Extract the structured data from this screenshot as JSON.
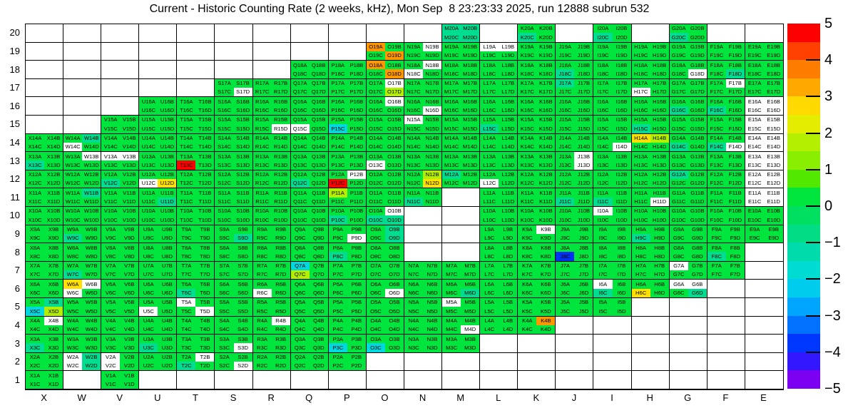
{
  "chart_data": {
    "type": "heatmap",
    "title": "Current - Historic Counting Rate (2 weeks, kHz), Mon Sep  8 23:23:33 2025, run 12888 subrun 532",
    "x_categories": [
      "X",
      "W",
      "V",
      "U",
      "T",
      "S",
      "R",
      "Q",
      "P",
      "O",
      "N",
      "M",
      "L",
      "K",
      "J",
      "I",
      "H",
      "G",
      "F",
      "E"
    ],
    "y_categories": [
      "20",
      "19",
      "18",
      "17",
      "16",
      "15",
      "14",
      "13",
      "12",
      "11",
      "10",
      "9",
      "8",
      "7",
      "6",
      "5",
      "4",
      "3",
      "2",
      "1"
    ],
    "channel_suffixes": [
      "A",
      "B",
      "C",
      "D"
    ],
    "colorbar": {
      "range": [
        -5,
        5
      ],
      "tick_labels": [
        "5",
        "4",
        "3",
        "2",
        "1",
        "0",
        "-1",
        "-2",
        "-3",
        "-4",
        "-5"
      ],
      "segments": [
        "#ff0000",
        "#ff4000",
        "#ff7d00",
        "#ffa800",
        "#ffd900",
        "#e4ec00",
        "#b4ee00",
        "#8aee00",
        "#52e800",
        "#00e43e",
        "#00e060",
        "#00dd85",
        "#00dbab",
        "#00dcd2",
        "#00cdee",
        "#00a5ff",
        "#0072ff",
        "#0037ff",
        "#3318ff",
        "#7c00f2"
      ]
    },
    "palette": {
      "g": "#00e43e",
      "t": "#00dd90",
      "c": "#00d8e0",
      "b": "#0032f5",
      "h": "#b4ee00",
      "y": "#ffe000",
      "o": "#ff9800",
      "r": "#ff0000",
      "w": "#ffffff"
    },
    "palette_values": {
      "g": 0,
      "t": -1,
      "c": -2,
      "b": -3.5,
      "h": 1.5,
      "y": 2.5,
      "o": 4,
      "r": 5,
      "w": "no-data"
    },
    "grid": {
      "rows": [
        {
          "row": "20",
          "modules": {
            "M": "tttt",
            "K": "ggtg",
            "I": "ggtg",
            "G": "ggtg"
          }
        },
        {
          "row": "19",
          "modules": {
            "O": "oggo",
            "N": "gwgg",
            "M": "gggg",
            "L": "wwgg",
            "K": "gggg",
            "J": "gggg",
            "I": "gggg",
            "H": "gggg",
            "G": "gggg",
            "F": "gggg",
            "E": "gggg"
          }
        },
        {
          "row": "18",
          "modules": {
            "Q": "gggg",
            "P": "gggg",
            "O": "oggo",
            "N": "gwwg",
            "M": "gggg",
            "L": "gggg",
            "K": "gggg",
            "J": "ggtg",
            "I": "gggg",
            "H": "gggg",
            "G": "gggw",
            "F": "gggt",
            "E": "gggg"
          }
        },
        {
          "row": "17",
          "modules": {
            "S": "gggw",
            "R": "gggg",
            "Q": "gggg",
            "P": "gggg",
            "O": "gwgh",
            "N": "gggg",
            "M": "gggg",
            "L": "gggg",
            "K": "gggg",
            "J": "tggg",
            "I": "gggg",
            "H": "ggwg",
            "G": "gggg",
            "F": "gwgg",
            "E": "gggg"
          }
        },
        {
          "row": "16",
          "modules": {
            "U": "gggg",
            "T": "gggg",
            "S": "gggg",
            "R": "gggg",
            "Q": "gggg",
            "P": "gggg",
            "O": "gwgg",
            "N": "gggw",
            "M": "gggg",
            "L": "gggg",
            "K": "gggg",
            "J": "gggg",
            "I": "gggg",
            "H": "gggg",
            "G": "ggtg",
            "F": "ggtg",
            "E": "wwww"
          }
        },
        {
          "row": "15",
          "modules": {
            "V": "gggg",
            "U": "gggg",
            "T": "gggg",
            "S": "gggg",
            "R": "gggw",
            "Q": "ggwg",
            "P": "ggcg",
            "O": "gggg",
            "N": "wggg",
            "M": "gggg",
            "L": "ggtg",
            "K": "gggg",
            "J": "gggg",
            "I": "gggg",
            "H": "ggtg",
            "G": "gggg",
            "F": "gggg",
            "E": "wwww"
          }
        },
        {
          "row": "14",
          "modules": {
            "X": "gggg",
            "W": "gtwg",
            "V": "gggg",
            "U": "gggg",
            "T": "gggg",
            "S": "gggg",
            "R": "gggg",
            "Q": "gggg",
            "P": "gggg",
            "O": "gggg",
            "N": "gggg",
            "M": "gggg",
            "L": "gggg",
            "K": "gggg",
            "J": "gggg",
            "I": "gggw",
            "H": "yhgg",
            "G": "ggtg",
            "F": "ggtw",
            "E": "wwww"
          }
        },
        {
          "row": "13",
          "modules": {
            "X": "ggtg",
            "W": "gwgg",
            "V": "wwgg",
            "U": "gggg",
            "T": "ggrg",
            "S": "gggg",
            "R": "gggg",
            "Q": "gggg",
            "P": "gggg",
            "O": "ggwg",
            "N": "gggg",
            "M": "gggg",
            "L": "gggg",
            "K": "gggg",
            "J": "gwgw",
            "I": "gggg",
            "H": "gggg",
            "G": "gggg",
            "F": "gggg",
            "E": "wwww"
          }
        },
        {
          "row": "12",
          "modules": {
            "X": "gggg",
            "W": "gggg",
            "V": "ggtg",
            "U": "ggwy",
            "T": "gggg",
            "S": "gggg",
            "R": "gggg",
            "Q": "ggtg",
            "P": "gwrg",
            "O": "gggg",
            "N": "ghgy",
            "M": "tggg",
            "L": "ggwg",
            "K": "gggg",
            "J": "gggg",
            "I": "gggg",
            "H": "gggg",
            "G": "tggg",
            "F": "gggg",
            "E": "wwww"
          }
        },
        {
          "row": "11",
          "modules": {
            "X": "gggg",
            "W": "gtgg",
            "V": "gggg",
            "U": "gggt",
            "T": "gggg",
            "S": "gggg",
            "R": "gggg",
            "Q": "gggg",
            "P": "hggg",
            "O": "gggg",
            "N": "ggtg",
            "L": "gggg",
            "K": "gggg",
            "J": "ggtg",
            "I": "ggtg",
            "H": "gggw",
            "G": "gggg",
            "F": "gggg",
            "E": "wwww"
          }
        },
        {
          "row": "10",
          "modules": {
            "X": "gggg",
            "W": "gggg",
            "V": "gggg",
            "U": "gggg",
            "T": "gggg",
            "S": "gggg",
            "R": "gggg",
            "Q": "gggg",
            "P": "ggtg",
            "O": "gwtt",
            "L": "gggg",
            "K": "gggg",
            "J": "gggg",
            "I": "wggg",
            "H": "gggg",
            "G": "gggg",
            "F": "gggg",
            "E": "gggg"
          }
        },
        {
          "row": "9",
          "modules": {
            "X": "gggg",
            "W": "ggtg",
            "V": "gggg",
            "U": "gggg",
            "T": "gggg",
            "S": "gggt",
            "R": "gggg",
            "Q": "gggg",
            "P": "gggw",
            "O": "gtgt",
            "L": "gggg",
            "K": "gwgg",
            "J": "gggg",
            "I": "gggg",
            "H": "ggtg",
            "G": "gggg",
            "F": "gggg",
            "E": "gggg"
          }
        },
        {
          "row": "8",
          "modules": {
            "X": "gggg",
            "W": "gggg",
            "V": "gggg",
            "U": "gggg",
            "T": "gggg",
            "S": "gggg",
            "R": "gggg",
            "Q": "gggg",
            "P": "ggtg",
            "O": "gggg",
            "L": "gggg",
            "K": "gggg",
            "J": "ggbg",
            "I": "gggg",
            "H": "gggg",
            "G": "gggg",
            "F": "ggtg"
          }
        },
        {
          "row": "7",
          "modules": {
            "X": "gggg",
            "W": "ggtg",
            "V": "gggg",
            "U": "gggg",
            "T": "gggg",
            "S": "gggg",
            "R": "gggg",
            "Q": "cghg",
            "P": "gggg",
            "O": "gggg",
            "N": "gggg",
            "M": "gggg",
            "L": "gggg",
            "K": "gggg",
            "J": "gggg",
            "I": "gggg",
            "H": "gggg",
            "G": "wggg",
            "F": "gggg"
          }
        },
        {
          "row": "6",
          "modules": {
            "X": "gggg",
            "W": "ywwg",
            "V": "gggg",
            "U": "gggg",
            "T": "ggtg",
            "S": "gggg",
            "R": "ggwg",
            "Q": "gggg",
            "P": "gggg",
            "O": "gggw",
            "N": "gggg",
            "M": "gggt",
            "L": "gggg",
            "K": "gggg",
            "J": "gggg",
            "I": "wgtg",
            "H": "ggyg",
            "G": "wwgt"
          }
        },
        {
          "row": "5",
          "modules": {
            "X": "gtch",
            "W": "gggg",
            "V": "gggg",
            "U": "ggwg",
            "T": "wggw",
            "S": "gggg",
            "R": "gggg",
            "Q": "gggg",
            "P": "gggg",
            "O": "gggg",
            "N": "gggg",
            "M": "wggg",
            "L": "gggg",
            "K": "gggg",
            "J": "gggg",
            "I": "gggg"
          }
        },
        {
          "row": "4",
          "modules": {
            "X": "gwgg",
            "W": "gggg",
            "V": "gggg",
            "U": "gggg",
            "T": "gggg",
            "S": "gggg",
            "R": "gwgg",
            "Q": "gggg",
            "P": "gggg",
            "O": "gggg",
            "N": "gggg",
            "M": "gggw",
            "L": "gggg",
            "K": "gogg"
          }
        },
        {
          "row": "3",
          "modules": {
            "X": "ggtg",
            "W": "gggg",
            "V": "gggg",
            "U": "ggtg",
            "T": "gggg",
            "S": "gggw",
            "R": "gggg",
            "Q": "gggg",
            "P": "ggcg",
            "O": "ggcg",
            "N": "gggg",
            "M": "gggg"
          }
        },
        {
          "row": "2",
          "modules": {
            "X": "gggg",
            "W": "wtwt",
            "V": "wgwg",
            "U": "gggg",
            "T": "gwtg",
            "S": "gggw",
            "R": "gggg",
            "Q": "gggg",
            "P": "gggg"
          }
        },
        {
          "row": "1",
          "modules": {
            "X": "gggg",
            "V": "gggg"
          }
        }
      ]
    }
  }
}
